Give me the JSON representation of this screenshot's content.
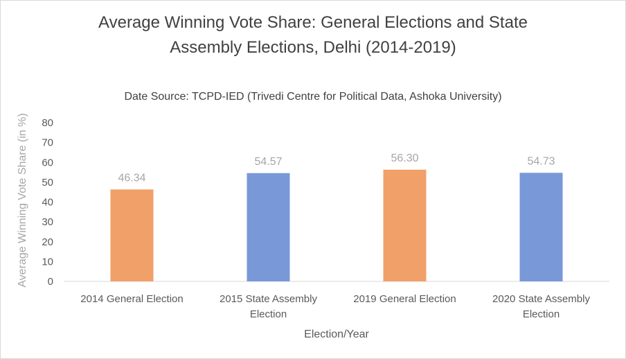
{
  "chart_data": {
    "type": "bar",
    "title_line1": "Average Winning Vote Share: General Elections and State",
    "title_line2": "Assembly Elections, Delhi (2014-2019)",
    "subtitle": "Date Source: TCPD-IED (Trivedi Centre for Political Data, Ashoka University)",
    "xlabel": "Election/Year",
    "ylabel": "Average Winning Vote Share (in %)",
    "ylim": [
      0,
      80
    ],
    "yticks": [
      0,
      10,
      20,
      30,
      40,
      50,
      60,
      70,
      80
    ],
    "categories": [
      [
        "2014 General Election"
      ],
      [
        "2015 State Assembly",
        "Election"
      ],
      [
        "2019 General Election"
      ],
      [
        "2020 State Assembly",
        "Election"
      ]
    ],
    "values": [
      46.34,
      54.57,
      56.3,
      54.73
    ],
    "data_labels": [
      "46.34",
      "54.57",
      "56.30",
      "54.73"
    ],
    "bar_colors": [
      "#f0a068",
      "#7898d8",
      "#f0a068",
      "#7898d8"
    ],
    "grid": false,
    "legend": "none"
  }
}
